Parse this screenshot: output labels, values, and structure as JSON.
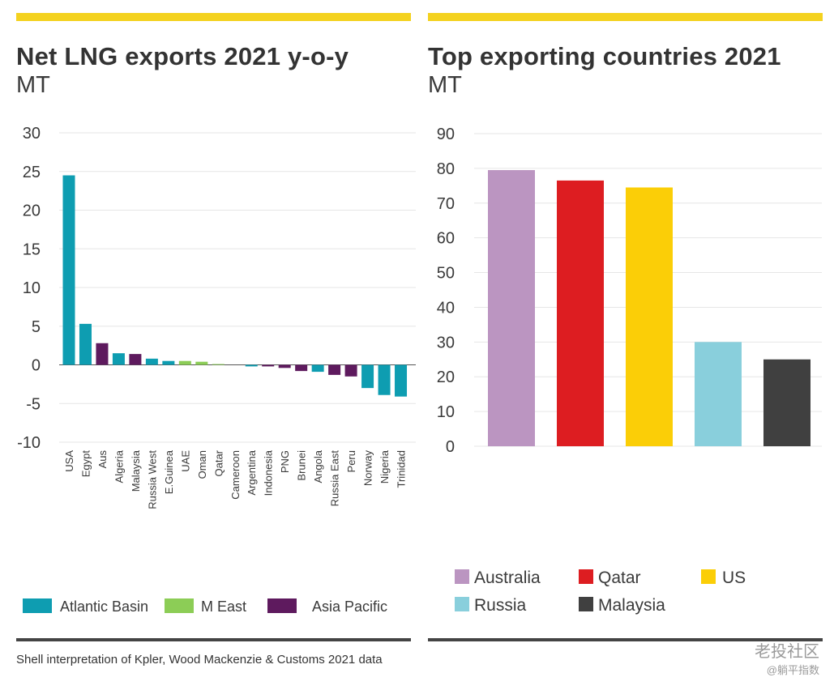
{
  "left_chart": {
    "title": "Net LNG exports 2021 y-o-y",
    "unit": "MT",
    "legend": [
      {
        "label": "Atlantic Basin",
        "color": "#0e9db1"
      },
      {
        "label": "M East",
        "color": "#8ccd56"
      },
      {
        "label": "Asia Pacific",
        "color": "#5e1a5e"
      }
    ]
  },
  "right_chart": {
    "title": "Top exporting countries 2021",
    "unit": "MT",
    "legend": [
      {
        "label": "Australia",
        "color": "#bb95c1"
      },
      {
        "label": "Qatar",
        "color": "#dd1d21"
      },
      {
        "label": "US",
        "color": "#fbce07"
      },
      {
        "label": "Russia",
        "color": "#89cfdc"
      },
      {
        "label": "Malaysia",
        "color": "#404040"
      }
    ]
  },
  "footer": {
    "source": "Shell interpretation of Kpler, Wood Mackenzie & Customs 2021 data",
    "watermark_line1": "老投社区",
    "watermark_line2": "@躺平指数"
  },
  "chart_data": [
    {
      "type": "bar",
      "title": "Net LNG exports 2021 y-o-y",
      "ylabel": "MT",
      "ylim": [
        -10,
        30
      ],
      "yticks": [
        30,
        25,
        20,
        15,
        10,
        5,
        0,
        -5,
        -10
      ],
      "ytick_labels": [
        "30",
        "25",
        "20",
        "15",
        "10",
        "5",
        "0",
        "-5",
        "-10"
      ],
      "categories": [
        "USA",
        "Egypt",
        "Aus",
        "Algeria",
        "Malaysia",
        "Russia West",
        "E.Guinea",
        "UAE",
        "Oman",
        "Qatar",
        "Cameroon",
        "Argentina",
        "Indonesia",
        "PNG",
        "Brunei",
        "Angola",
        "Russia East",
        "Peru",
        "Norway",
        "Nigeria",
        "Trinidad"
      ],
      "values": [
        24.5,
        5.3,
        2.8,
        1.5,
        1.4,
        0.8,
        0.5,
        0.5,
        0.4,
        0.1,
        0.0,
        -0.2,
        -0.2,
        -0.4,
        -0.8,
        -0.9,
        -1.3,
        -1.5,
        -3.0,
        -3.9,
        -4.1
      ],
      "groups": [
        "Atlantic Basin",
        "Atlantic Basin",
        "Asia Pacific",
        "Atlantic Basin",
        "Asia Pacific",
        "Atlantic Basin",
        "Atlantic Basin",
        "M East",
        "M East",
        "M East",
        "Atlantic Basin",
        "Atlantic Basin",
        "Asia Pacific",
        "Asia Pacific",
        "Asia Pacific",
        "Atlantic Basin",
        "Asia Pacific",
        "Asia Pacific",
        "Atlantic Basin",
        "Atlantic Basin",
        "Atlantic Basin"
      ]
    },
    {
      "type": "bar",
      "title": "Top exporting countries 2021",
      "ylabel": "MT",
      "ylim": [
        0,
        90
      ],
      "yticks": [
        90,
        80,
        70,
        60,
        50,
        40,
        30,
        20,
        10,
        0
      ],
      "ytick_labels": [
        "90",
        "80",
        "70",
        "60",
        "50",
        "40",
        "30",
        "20",
        "10",
        "0"
      ],
      "categories": [
        "Australia",
        "Qatar",
        "US",
        "Russia",
        "Malaysia"
      ],
      "values": [
        79.5,
        76.5,
        74.5,
        30.0,
        25.0
      ]
    }
  ]
}
